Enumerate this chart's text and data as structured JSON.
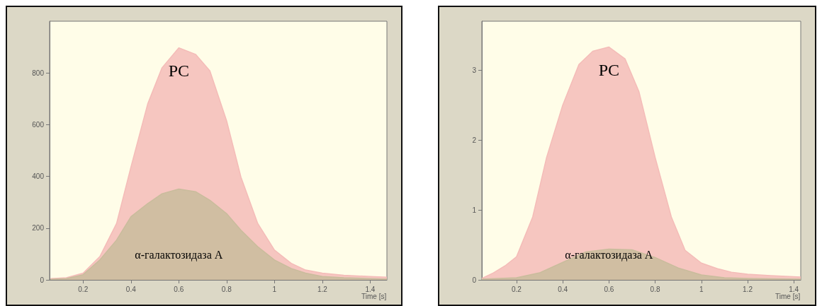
{
  "chart_data": [
    {
      "type": "area",
      "xlabel": "Time [s]",
      "xlim": [
        0.06,
        1.47
      ],
      "xticks": [
        0.2,
        0.4,
        0.6,
        0.8,
        1.0,
        1.2,
        1.4
      ],
      "ylim": [
        0,
        1000
      ],
      "yticks": [
        0,
        200,
        400,
        600,
        800
      ],
      "grid": false,
      "marker": "none",
      "series": [
        {
          "name": "PC",
          "color": "#f4bcb8",
          "x": [
            0.064,
            0.13,
            0.2,
            0.27,
            0.34,
            0.4,
            0.47,
            0.53,
            0.6,
            0.67,
            0.73,
            0.8,
            0.86,
            0.93,
            1.0,
            1.07,
            1.13,
            1.2,
            1.29,
            1.4,
            1.47
          ],
          "values": [
            5,
            8,
            26,
            90,
            218,
            436,
            680,
            820,
            897,
            872,
            808,
            615,
            397,
            218,
            115,
            64,
            38,
            26,
            18,
            13,
            10
          ]
        },
        {
          "name": "α-галактозидаза A",
          "color": "#c9bc9c",
          "x": [
            0.064,
            0.13,
            0.2,
            0.27,
            0.34,
            0.4,
            0.47,
            0.53,
            0.6,
            0.67,
            0.73,
            0.8,
            0.86,
            0.93,
            1.0,
            1.07,
            1.13,
            1.2,
            1.29,
            1.4,
            1.47
          ],
          "values": [
            2,
            5,
            20,
            77,
            154,
            244,
            295,
            333,
            351,
            341,
            308,
            256,
            192,
            128,
            77,
            44,
            26,
            13,
            8,
            5,
            3
          ]
        }
      ]
    },
    {
      "type": "area",
      "xlabel": "Time [s]",
      "xlim": [
        0.05,
        1.43
      ],
      "xticks": [
        0.2,
        0.4,
        0.6,
        0.8,
        1.0,
        1.2,
        1.4
      ],
      "ylim": [
        0,
        3.7
      ],
      "yticks": [
        0,
        1,
        2,
        3
      ],
      "grid": false,
      "marker": "none",
      "series": [
        {
          "name": "PC",
          "color": "#f4bcb8",
          "x": [
            0.05,
            0.1,
            0.15,
            0.2,
            0.27,
            0.33,
            0.4,
            0.47,
            0.53,
            0.6,
            0.67,
            0.73,
            0.8,
            0.87,
            0.93,
            1.0,
            1.07,
            1.13,
            1.2,
            1.3,
            1.43
          ],
          "values": [
            0.02,
            0.1,
            0.2,
            0.33,
            0.9,
            1.75,
            2.5,
            3.08,
            3.27,
            3.33,
            3.16,
            2.69,
            1.75,
            0.9,
            0.42,
            0.24,
            0.16,
            0.11,
            0.08,
            0.06,
            0.04
          ]
        },
        {
          "name": "α-галактозидаза A",
          "color": "#c9bc9c",
          "x": [
            0.05,
            0.2,
            0.3,
            0.4,
            0.5,
            0.6,
            0.7,
            0.8,
            0.9,
            1.0,
            1.1,
            1.2,
            1.43
          ],
          "values": [
            0.01,
            0.03,
            0.1,
            0.25,
            0.4,
            0.44,
            0.43,
            0.32,
            0.17,
            0.07,
            0.03,
            0.02,
            0.01
          ]
        }
      ]
    }
  ]
}
